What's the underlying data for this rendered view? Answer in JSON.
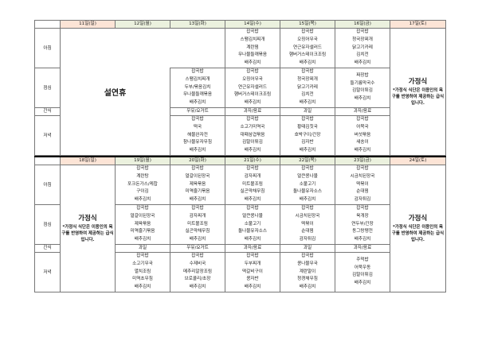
{
  "meal_labels": {
    "breakfast": "아침",
    "lunch": "점심",
    "snack": "간식",
    "dinner": "저녁"
  },
  "holiday_text": "설연휴",
  "home_meal": {
    "title": "가정식",
    "note": "*가정식 식단은 이용인의 욕구를 반영하여 제공하는 급식입니다."
  },
  "colors": {
    "weekday_header": "#ebf1de",
    "weekend_header": "#fce4d6"
  },
  "weeks": [
    {
      "days": [
        {
          "header": "11일(일)",
          "type": "holiday",
          "weekend": true
        },
        {
          "header": "12일(월)",
          "type": "holiday"
        },
        {
          "header": "13일(화)",
          "type": "normal",
          "breakfast": [],
          "lunch": [
            "잡곡밥",
            "스팸김치찌개",
            "두부/볶음김치",
            "무나물들깨볶음",
            "배추김치"
          ],
          "snack": "우유/요거트",
          "dinner": [
            "잡곡밥",
            "떡국",
            "해물완자전",
            "참나물유자무침",
            "배추김치"
          ]
        },
        {
          "header": "14일(수)",
          "type": "normal",
          "breakfast": [
            "잡곡밥",
            "스팸김치찌개",
            "계란찜",
            "무나물들깨볶음",
            "배추김치"
          ],
          "lunch": [
            "잡곡밥",
            "오징어무국",
            "연근유자샐러드",
            "햄버거스테이크조림",
            "배추김치"
          ],
          "snack": "과자/음료",
          "dinner": [
            "잡곡밥",
            "소고기미역국",
            "대패삼겹볶음",
            "김말이튀김",
            "배추김치"
          ]
        },
        {
          "header": "15일(목)",
          "type": "normal",
          "breakfast": [
            "잡곡밥",
            "오징어무국",
            "연근유자샐러드",
            "햄버거스테이크조림",
            "배추김치"
          ],
          "lunch": [
            "잡곡밥",
            "청국장찌개",
            "닭고기카레",
            "김치전",
            "배추김치"
          ],
          "snack": "과일",
          "dinner": [
            "잡곡밥",
            "황태김칫국",
            "호박구이/간장",
            "김자반",
            "배추김치"
          ]
        },
        {
          "header": "16일(금)",
          "type": "normal",
          "breakfast": [
            "잡곡밥",
            "청국장찌개",
            "닭고기카레",
            "김치전",
            "배추김치"
          ],
          "lunch": [
            "짜장밥",
            "들기름막국수",
            "김말이튀김",
            "배추김치"
          ],
          "snack": "과자/음료",
          "dinner": [
            "잡곡밥",
            "어묵국",
            "버섯볶음",
            "새송이",
            "배추김치"
          ]
        },
        {
          "header": "17일(토)",
          "type": "home",
          "weekend": true
        }
      ]
    },
    {
      "days": [
        {
          "header": "18일(일)",
          "type": "home",
          "weekend": true
        },
        {
          "header": "19일(월)",
          "type": "normal",
          "breakfast": [
            "잡곡밥",
            "계란탕",
            "포크돈가스/케찹",
            "구이김",
            "배추김치"
          ],
          "lunch": [
            "잡곡밥",
            "얼갈이된장국",
            "제육볶음",
            "미역줄기볶음",
            "배추김치"
          ],
          "snack": "과일",
          "dinner": [
            "잡곡밥",
            "소고기무국",
            "멸치조림",
            "미역초무침",
            "배추김치"
          ]
        },
        {
          "header": "20일(화)",
          "type": "normal",
          "breakfast": [
            "잡곡밥",
            "얼갈이된장국",
            "제육볶음",
            "미역줄기볶음",
            "배추김치"
          ],
          "lunch": [
            "잡곡밥",
            "감자찌개",
            "미트볼조림",
            "실곤약채무침",
            "배추김치"
          ],
          "snack": "우유/요거트",
          "dinner": [
            "잡곡밥",
            "수제비국",
            "메추리알장조림",
            "브로콜리/초장",
            "배추김치"
          ]
        },
        {
          "header": "21일(수)",
          "type": "normal",
          "breakfast": [
            "잡곡밥",
            "감자찌개",
            "미트볼조림",
            "실곤약채무침",
            "배추김치"
          ],
          "lunch": [
            "잡곡밥",
            "얼큰콩나물",
            "소불고기",
            "돌나물유자소스",
            "배추김치"
          ],
          "snack": "과자/음료",
          "dinner": [
            "잡곡밥",
            "두부찌개",
            "떡갈비구이",
            "콩자반",
            "배추김치"
          ]
        },
        {
          "header": "22일(목)",
          "type": "normal",
          "breakfast": [
            "잡곡밥",
            "얼큰콩나물",
            "소불고기",
            "돌나물유자소스",
            "배추김치"
          ],
          "lunch": [
            "잡곡밥",
            "시금치된장국",
            "떡볶이",
            "순대찜",
            "감자튀김"
          ],
          "snack": "과일",
          "dinner": [
            "잡곡밥",
            "콩나물무국",
            "계란말이",
            "청경채무침",
            "배추김치"
          ]
        },
        {
          "header": "23일(금)",
          "type": "normal",
          "breakfast": [
            "잡곡밥",
            "시금치된장국",
            "떡볶이",
            "순대찜",
            "감자튀김"
          ],
          "lunch": [
            "잡곡밥",
            "육개장",
            "연두부/간장",
            "동그랑땡전",
            "배추김치"
          ],
          "snack": "과자/음료",
          "dinner": [
            "주먹밥",
            "어묵우동",
            "김말이튀김",
            "배추김치"
          ]
        },
        {
          "header": "24일(토)",
          "type": "home",
          "weekend": true
        }
      ]
    }
  ]
}
